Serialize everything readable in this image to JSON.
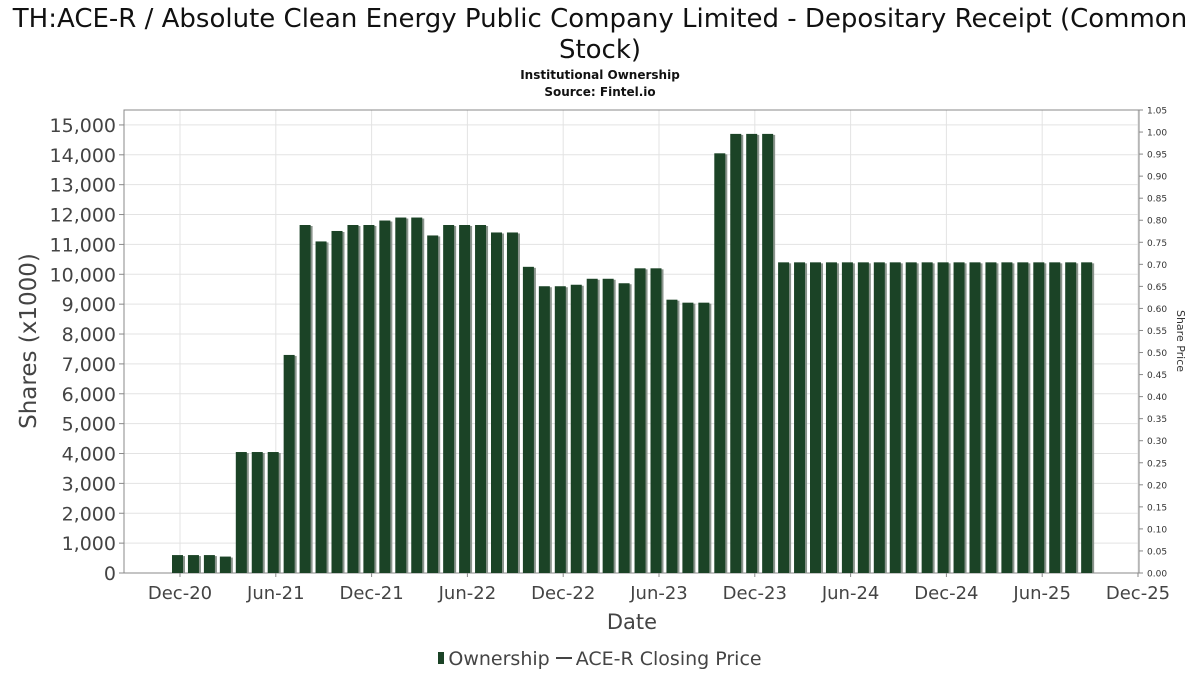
{
  "chart_data": {
    "type": "bar",
    "title": "TH:ACE-R / Absolute Clean Energy Public Company Limited - Depositary Receipt (Common Stock)",
    "subtitle": [
      "Institutional Ownership",
      "Source: Fintel.io"
    ],
    "xlabel": "Date",
    "ylabel": "Shares (x1000)",
    "y2label": "Share Price",
    "ylim": [
      0,
      15500
    ],
    "y2lim": [
      0,
      1.05
    ],
    "yticks": [
      "0",
      "1,000",
      "2,000",
      "3,000",
      "4,000",
      "5,000",
      "6,000",
      "7,000",
      "8,000",
      "9,000",
      "10,000",
      "11,000",
      "12,000",
      "13,000",
      "14,000",
      "15,000"
    ],
    "y2ticks": [
      "0.00",
      "0.05",
      "0.10",
      "0.15",
      "0.20",
      "0.25",
      "0.30",
      "0.35",
      "0.40",
      "0.45",
      "0.50",
      "0.55",
      "0.60",
      "0.65",
      "0.70",
      "0.75",
      "0.80",
      "0.85",
      "0.90",
      "0.95",
      "1.00",
      "1.05"
    ],
    "xticks": [
      "Dec-20",
      "Jun-21",
      "Dec-21",
      "Jun-22",
      "Dec-22",
      "Jun-23",
      "Dec-23",
      "Jun-24",
      "Dec-24",
      "Jun-25",
      "Dec-25"
    ],
    "grid": true,
    "legend_position": "bottom",
    "series": [
      {
        "name": "Ownership",
        "color": "#1b4326",
        "values": [
          600,
          600,
          600,
          550,
          4050,
          4050,
          4050,
          7300,
          11650,
          11100,
          11450,
          11650,
          11650,
          11800,
          11900,
          11900,
          11300,
          11650,
          11650,
          11650,
          11400,
          11400,
          10250,
          9600,
          9600,
          9650,
          9850,
          9850,
          9700,
          10200,
          10200,
          9150,
          9050,
          9050,
          14050,
          14700,
          14700,
          14700,
          10400,
          10400,
          10400,
          10400,
          10400,
          10400,
          10400,
          10400,
          10400,
          10400,
          10400,
          10400,
          10400,
          10400,
          10400,
          10400,
          10400,
          10400,
          10400,
          10400
        ]
      },
      {
        "name": "ACE-R Closing Price",
        "color": "#444444",
        "values": []
      }
    ]
  }
}
